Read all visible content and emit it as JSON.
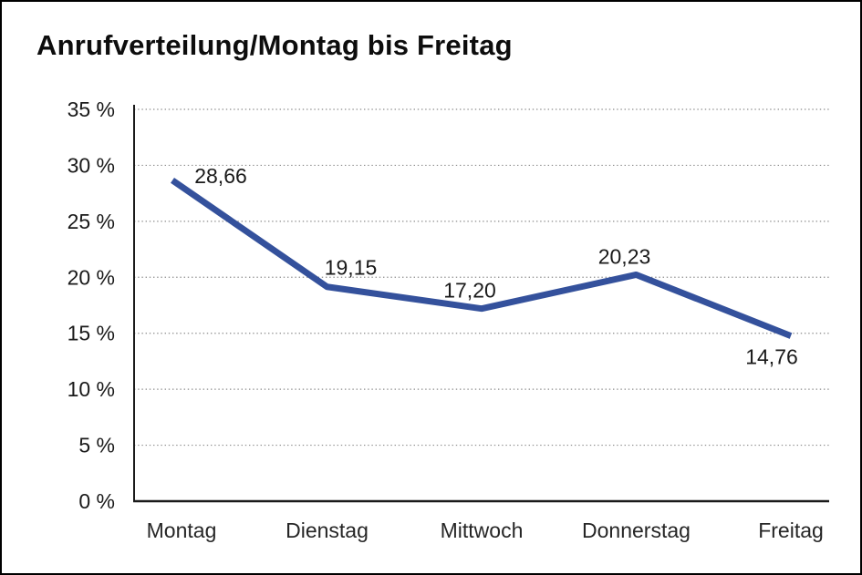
{
  "chart_data": {
    "type": "line",
    "title": "Anrufverteilung/Montag bis Freitag",
    "categories": [
      "Montag",
      "Dienstag",
      "Mittwoch",
      "Donnerstag",
      "Freitag"
    ],
    "values": [
      28.66,
      19.15,
      17.2,
      20.23,
      14.76
    ],
    "value_labels": [
      "28,66",
      "19,15",
      "17,20",
      "20,23",
      "14,76"
    ],
    "xlabel": "",
    "ylabel": "",
    "ylim": [
      0,
      35
    ],
    "ytick_step": 5,
    "ytick_labels": [
      "0 %",
      "5 %",
      "10 %",
      "15 %",
      "20 %",
      "25 %",
      "30 %",
      "35 %"
    ],
    "grid": "horizontal-dotted",
    "legend": "none",
    "line_color": "#34519c",
    "axis_color": "#1a1a1a",
    "gridline_color": "#8c8c8c",
    "label_color": "#1a1a1a"
  }
}
